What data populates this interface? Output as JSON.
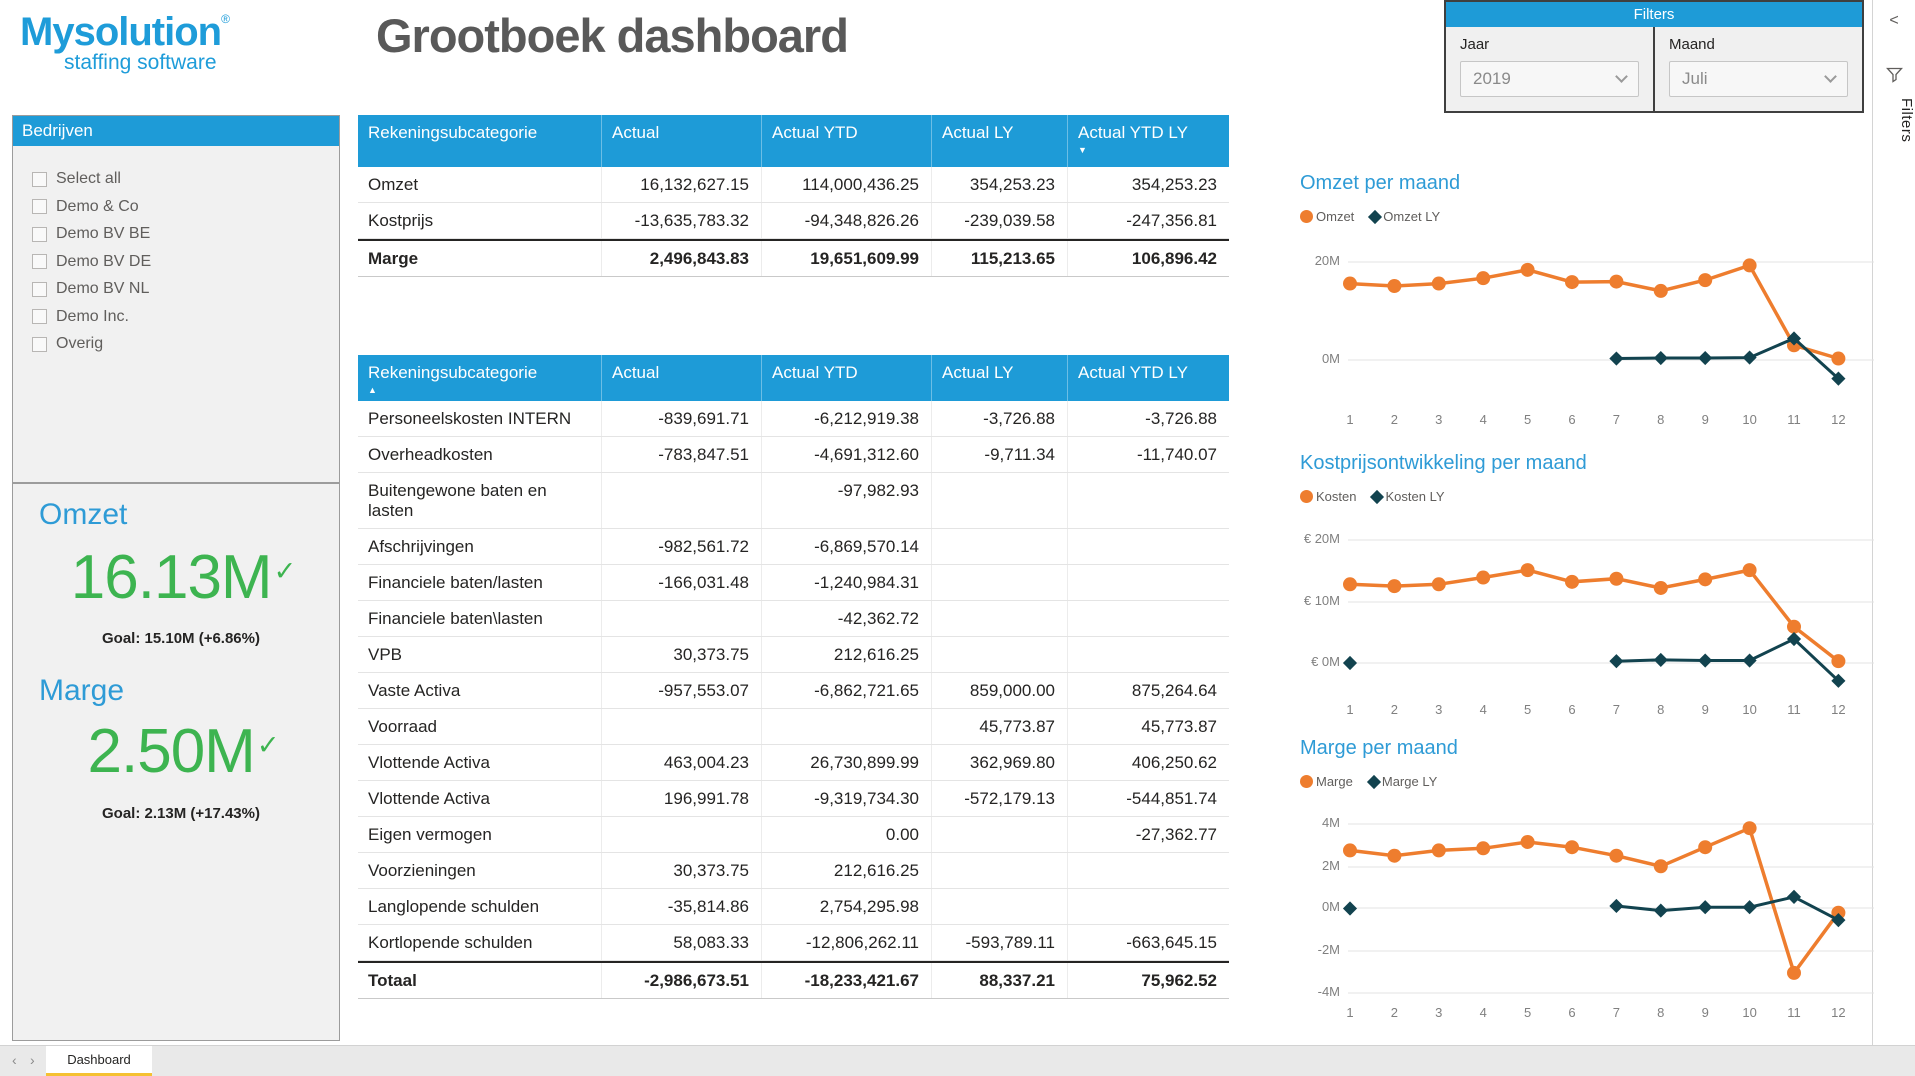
{
  "logo": {
    "brand": "Mysolution",
    "registered": "®",
    "tagline": "staffing software"
  },
  "page_title": "Grootboek dashboard",
  "colors": {
    "header_blue": "#1E9BD7",
    "title_blue": "#2E9BD6",
    "orange": "#EE7D2E",
    "dark_teal": "#12434F",
    "kpi_green": "#3DB450",
    "page_title_gray": "#595959",
    "tab_accent_yellow": "#F5C132"
  },
  "filters_panel": {
    "title": "Filters",
    "fields": [
      {
        "label": "Jaar",
        "value": "2019"
      },
      {
        "label": "Maand",
        "value": "Juli"
      }
    ]
  },
  "filters_rail": {
    "collapse_glyph": "<",
    "label": "Filters"
  },
  "slicer": {
    "title": "Bedrijven",
    "items": [
      "Select all",
      "Demo & Co",
      "Demo BV BE",
      "Demo BV DE",
      "Demo BV NL",
      "Demo Inc.",
      "Overig"
    ]
  },
  "kpis": [
    {
      "title": "Omzet",
      "value": "16.13M",
      "check": "✓",
      "goal": "Goal: 15.10M (+6.86%)"
    },
    {
      "title": "Marge",
      "value": "2.50M",
      "check": "✓",
      "goal": "Goal: 2.13M (+17.43%)"
    }
  ],
  "summary_table": {
    "columns": [
      "Rekeningsubcategorie",
      "Actual",
      "Actual YTD",
      "Actual LY",
      "Actual YTD LY"
    ],
    "sort": {
      "col": 4,
      "glyph": "▼"
    },
    "rows": [
      [
        "Omzet",
        "16,132,627.15",
        "114,000,436.25",
        "354,253.23",
        "354,253.23"
      ],
      [
        "Kostprijs",
        "-13,635,783.32",
        "-94,348,826.26",
        "-239,039.58",
        "-247,356.81"
      ]
    ],
    "total_row": [
      "Marge",
      "2,496,843.83",
      "19,651,609.99",
      "115,213.65",
      "106,896.42"
    ]
  },
  "detail_table": {
    "columns": [
      "Rekeningsubcategorie",
      "Actual",
      "Actual YTD",
      "Actual LY",
      "Actual YTD LY"
    ],
    "sort": {
      "col": 0,
      "glyph": "▲"
    },
    "rows": [
      [
        "Personeelskosten INTERN",
        "-839,691.71",
        "-6,212,919.38",
        "-3,726.88",
        "-3,726.88"
      ],
      [
        "Overheadkosten",
        "-783,847.51",
        "-4,691,312.60",
        "-9,711.34",
        "-11,740.07"
      ],
      [
        "Buitengewone baten en lasten",
        "",
        "-97,982.93",
        "",
        ""
      ],
      [
        "Afschrijvingen",
        "-982,561.72",
        "-6,869,570.14",
        "",
        ""
      ],
      [
        "Financiele baten/lasten",
        "-166,031.48",
        "-1,240,984.31",
        "",
        ""
      ],
      [
        "Financiele baten\\lasten",
        "",
        "-42,362.72",
        "",
        ""
      ],
      [
        "VPB",
        "30,373.75",
        "212,616.25",
        "",
        ""
      ],
      [
        "Vaste Activa",
        "-957,553.07",
        "-6,862,721.65",
        "859,000.00",
        "875,264.64"
      ],
      [
        "Voorraad",
        "",
        "",
        "45,773.87",
        "45,773.87"
      ],
      [
        "Vlottende Activa",
        "463,004.23",
        "26,730,899.99",
        "362,969.80",
        "406,250.62"
      ],
      [
        "Vlottende Activa",
        "196,991.78",
        "-9,319,734.30",
        "-572,179.13",
        "-544,851.74"
      ],
      [
        "Eigen vermogen",
        "",
        "0.00",
        "",
        "-27,362.77"
      ],
      [
        "Voorzieningen",
        "30,373.75",
        "212,616.25",
        "",
        ""
      ],
      [
        "Langlopende schulden",
        "-35,814.86",
        "2,754,295.98",
        "",
        ""
      ],
      [
        "Kortlopende schulden",
        "58,083.33",
        "-12,806,262.11",
        "-593,789.11",
        "-663,645.15"
      ]
    ],
    "total_row": [
      "Totaal",
      "-2,986,673.51",
      "-18,233,421.67",
      "88,337.21",
      "75,962.52"
    ]
  },
  "chart_data": [
    {
      "type": "line",
      "title": "Omzet per maand",
      "x": [
        1,
        2,
        3,
        4,
        5,
        6,
        7,
        8,
        9,
        10,
        11,
        12
      ],
      "xlabel": "",
      "ylabel": "",
      "grid": true,
      "legend_position": "top-left",
      "yticks": [
        {
          "label": "20M",
          "value": 20
        },
        {
          "label": "0M",
          "value": 0
        }
      ],
      "ylim": [
        -5,
        21
      ],
      "series": [
        {
          "name": "Omzet",
          "marker": "circle",
          "color": "#EE7D2E",
          "values": [
            15.6,
            15.1,
            15.6,
            16.7,
            18.4,
            15.9,
            16.0,
            14.1,
            16.3,
            19.3,
            3.0,
            0.3
          ]
        },
        {
          "name": "Omzet LY",
          "marker": "diamond",
          "color": "#12434F",
          "values": [
            null,
            null,
            null,
            null,
            null,
            null,
            0.3,
            0.4,
            0.4,
            0.5,
            4.4,
            -3.8
          ]
        }
      ]
    },
    {
      "type": "line",
      "title": "Kostprijsontwikkeling per maand",
      "x": [
        1,
        2,
        3,
        4,
        5,
        6,
        7,
        8,
        9,
        10,
        11,
        12
      ],
      "xlabel": "",
      "ylabel": "",
      "grid": true,
      "legend_position": "top-left",
      "yticks": [
        {
          "label": "€ 20M",
          "value": 20
        },
        {
          "label": "€ 10M",
          "value": 10
        },
        {
          "label": "€ 0M",
          "value": 0
        }
      ],
      "ylim": [
        -4,
        21
      ],
      "series": [
        {
          "name": "Kosten",
          "marker": "circle",
          "color": "#EE7D2E",
          "values": [
            12.8,
            12.5,
            12.8,
            13.9,
            15.1,
            13.2,
            13.7,
            12.2,
            13.6,
            15.1,
            5.9,
            0.3
          ]
        },
        {
          "name": "Kosten LY",
          "marker": "diamond",
          "color": "#12434F",
          "values": [
            0,
            null,
            null,
            null,
            null,
            null,
            0.3,
            0.5,
            0.4,
            0.4,
            3.9,
            -2.9
          ]
        }
      ]
    },
    {
      "type": "line",
      "title": "Marge per maand",
      "x": [
        1,
        2,
        3,
        4,
        5,
        6,
        7,
        8,
        9,
        10,
        11,
        12
      ],
      "xlabel": "",
      "ylabel": "",
      "grid": true,
      "legend_position": "top-left",
      "yticks": [
        {
          "label": "4M",
          "value": 4
        },
        {
          "label": "2M",
          "value": 2
        },
        {
          "label": "0M",
          "value": 0
        },
        {
          "label": "-2M",
          "value": -2
        },
        {
          "label": "-4M",
          "value": -4
        }
      ],
      "ylim": [
        -4,
        4
      ],
      "series": [
        {
          "name": "Marge",
          "marker": "circle",
          "color": "#EE7D2E",
          "values": [
            2.75,
            2.5,
            2.75,
            2.85,
            3.15,
            2.9,
            2.5,
            2.0,
            2.9,
            3.8,
            -3.05,
            -0.2
          ]
        },
        {
          "name": "Marge LY",
          "marker": "diamond",
          "color": "#12434F",
          "values": [
            0,
            null,
            null,
            null,
            null,
            null,
            0.12,
            -0.1,
            0.06,
            0.06,
            0.55,
            -0.55
          ]
        }
      ]
    }
  ],
  "page_tabs": {
    "prev": "‹",
    "next": "›",
    "tabs": [
      {
        "label": "Dashboard",
        "active": true
      }
    ]
  }
}
